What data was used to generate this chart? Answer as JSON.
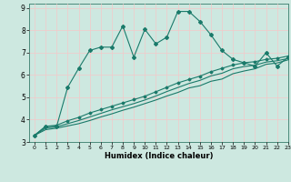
{
  "title": "",
  "xlabel": "Humidex (Indice chaleur)",
  "ylabel": "",
  "xlim": [
    -0.5,
    23
  ],
  "ylim": [
    3,
    9.2
  ],
  "xticks": [
    0,
    1,
    2,
    3,
    4,
    5,
    6,
    7,
    8,
    9,
    10,
    11,
    12,
    13,
    14,
    15,
    16,
    17,
    18,
    19,
    20,
    21,
    22,
    23
  ],
  "yticks": [
    3,
    4,
    5,
    6,
    7,
    8,
    9
  ],
  "bg_color": "#cde8e0",
  "grid_color": "#f5c8c8",
  "line_color": "#1a7a6a",
  "line1_x": [
    0,
    1,
    2,
    3,
    4,
    5,
    6,
    7,
    8,
    9,
    10,
    11,
    12,
    13,
    14,
    15,
    16,
    17,
    18,
    19,
    20,
    21,
    22,
    23
  ],
  "line1_y": [
    3.3,
    3.7,
    3.7,
    5.45,
    6.3,
    7.1,
    7.25,
    7.25,
    8.2,
    6.8,
    8.05,
    7.4,
    7.7,
    8.85,
    8.85,
    8.4,
    7.8,
    7.1,
    6.7,
    6.55,
    6.4,
    7.0,
    6.4,
    6.8
  ],
  "line2_x": [
    0,
    1,
    2,
    3,
    4,
    5,
    6,
    7,
    8,
    9,
    10,
    11,
    12,
    13,
    14,
    15,
    16,
    17,
    18,
    19,
    20,
    21,
    22,
    23
  ],
  "line2_y": [
    3.3,
    3.7,
    3.75,
    3.95,
    4.1,
    4.3,
    4.45,
    4.6,
    4.75,
    4.9,
    5.05,
    5.25,
    5.45,
    5.65,
    5.8,
    5.95,
    6.15,
    6.3,
    6.45,
    6.55,
    6.6,
    6.7,
    6.75,
    6.85
  ],
  "line3_x": [
    0,
    1,
    2,
    3,
    4,
    5,
    6,
    7,
    8,
    9,
    10,
    11,
    12,
    13,
    14,
    15,
    16,
    17,
    18,
    19,
    20,
    21,
    22,
    23
  ],
  "line3_y": [
    3.3,
    3.62,
    3.68,
    3.82,
    3.96,
    4.12,
    4.28,
    4.44,
    4.58,
    4.72,
    4.88,
    5.06,
    5.26,
    5.44,
    5.62,
    5.76,
    5.96,
    6.08,
    6.28,
    6.38,
    6.44,
    6.58,
    6.64,
    6.74
  ],
  "line4_x": [
    0,
    1,
    2,
    3,
    4,
    5,
    6,
    7,
    8,
    9,
    10,
    11,
    12,
    13,
    14,
    15,
    16,
    17,
    18,
    19,
    20,
    21,
    22,
    23
  ],
  "line4_y": [
    3.3,
    3.55,
    3.62,
    3.72,
    3.82,
    3.96,
    4.12,
    4.26,
    4.42,
    4.56,
    4.72,
    4.88,
    5.06,
    5.22,
    5.42,
    5.52,
    5.72,
    5.82,
    6.06,
    6.18,
    6.28,
    6.48,
    6.54,
    6.68
  ]
}
